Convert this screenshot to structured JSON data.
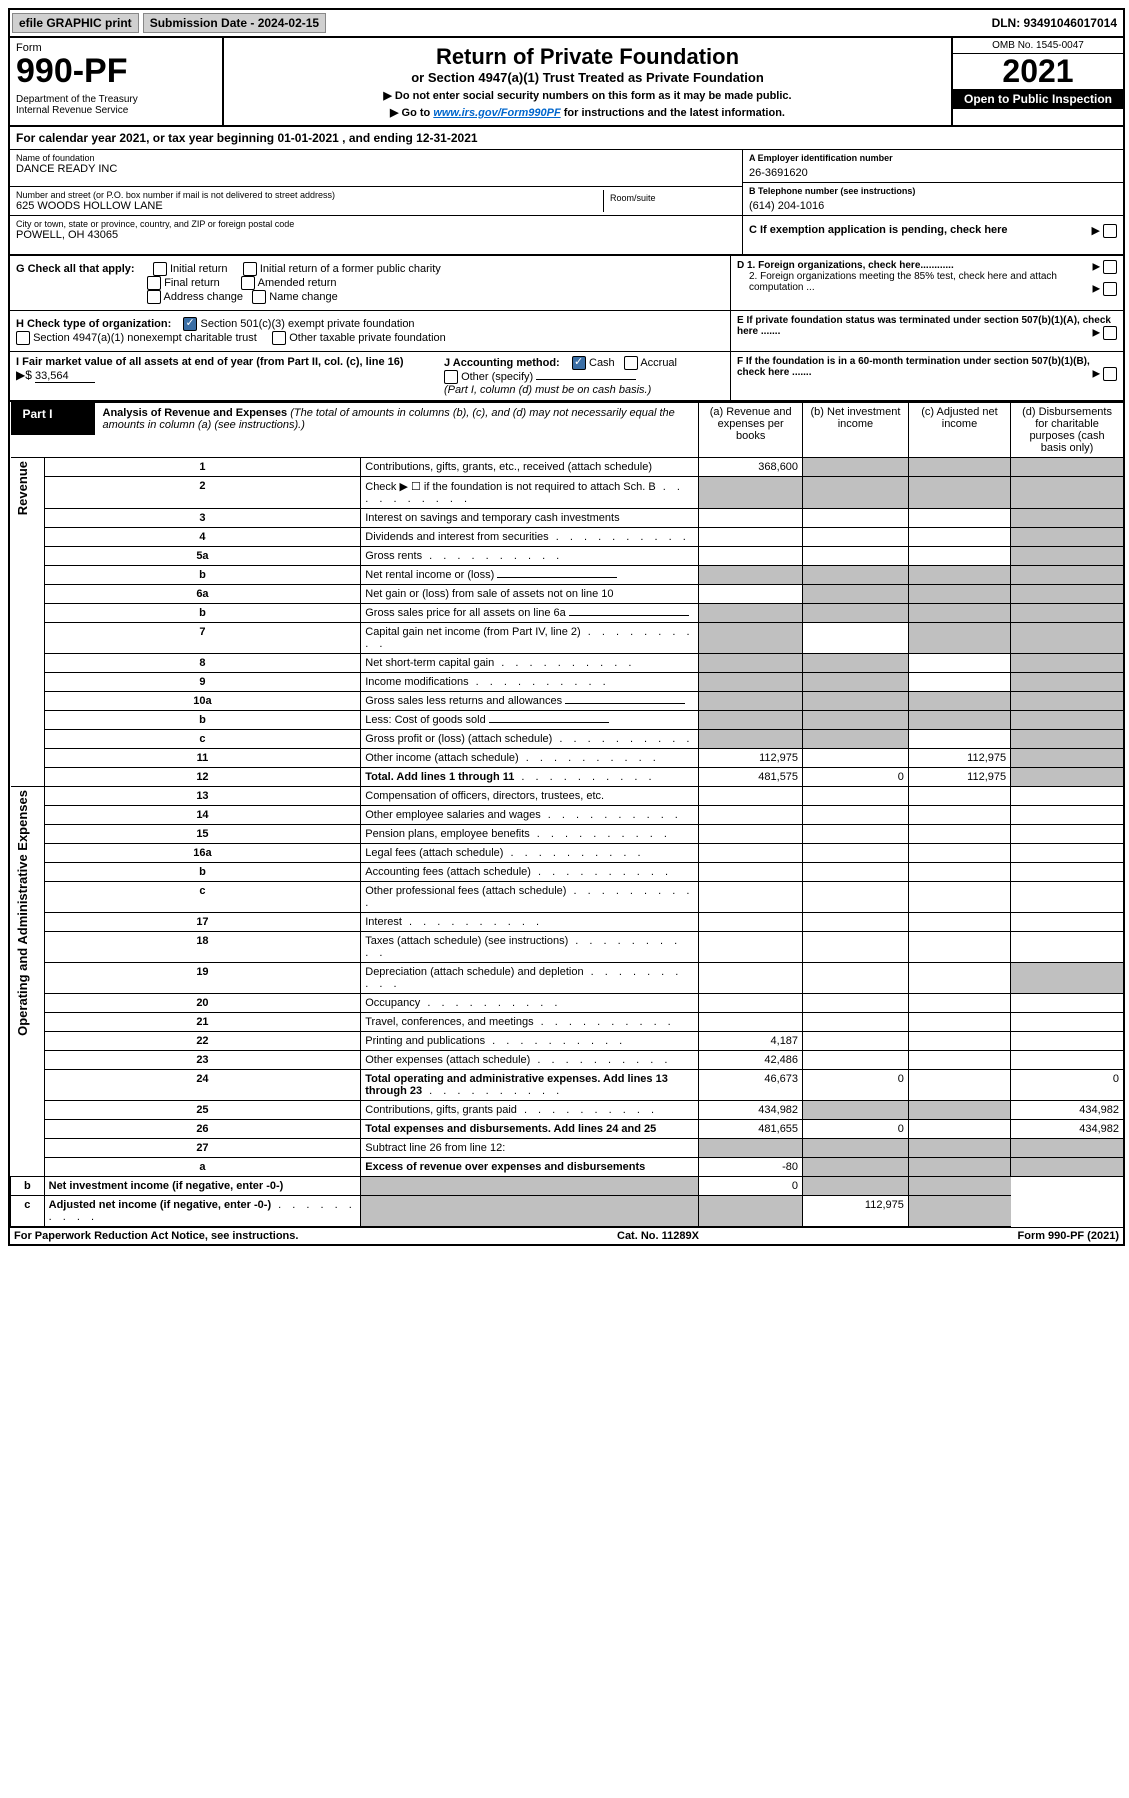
{
  "topbar": {
    "efile": "efile GRAPHIC print",
    "subdate_label": "Submission Date - 2024-02-15",
    "dln": "DLN: 93491046017014"
  },
  "header": {
    "form_label": "Form",
    "form_no": "990-PF",
    "dept": "Department of the Treasury\nInternal Revenue Service",
    "title": "Return of Private Foundation",
    "subtitle": "or Section 4947(a)(1) Trust Treated as Private Foundation",
    "note1": "▶ Do not enter social security numbers on this form as it may be made public.",
    "note2_pre": "▶ Go to ",
    "note2_link": "www.irs.gov/Form990PF",
    "note2_post": " for instructions and the latest information.",
    "omb": "OMB No. 1545-0047",
    "year": "2021",
    "open": "Open to Public Inspection"
  },
  "calyear": "For calendar year 2021, or tax year beginning 01-01-2021                              , and ending 12-31-2021",
  "entity": {
    "name_label": "Name of foundation",
    "name": "DANCE READY INC",
    "addr_label": "Number and street (or P.O. box number if mail is not delivered to street address)",
    "addr": "625 WOODS HOLLOW LANE",
    "room_label": "Room/suite",
    "city_label": "City or town, state or province, country, and ZIP or foreign postal code",
    "city": "POWELL, OH  43065",
    "ein_label": "A Employer identification number",
    "ein": "26-3691620",
    "phone_label": "B Telephone number (see instructions)",
    "phone": "(614) 204-1016",
    "c_label": "C If exemption application is pending, check here"
  },
  "g": {
    "label": "G Check all that apply:",
    "opts": [
      "Initial return",
      "Initial return of a former public charity",
      "Final return",
      "Amended return",
      "Address change",
      "Name change"
    ]
  },
  "d": {
    "d1": "D 1. Foreign organizations, check here............",
    "d2": "2. Foreign organizations meeting the 85% test, check here and attach computation ...",
    "e": "E  If private foundation status was terminated under section 507(b)(1)(A), check here .......",
    "f": "F  If the foundation is in a 60-month termination under section 507(b)(1)(B), check here ......."
  },
  "h": {
    "label": "H Check type of organization:",
    "opt1": "Section 501(c)(3) exempt private foundation",
    "opt2": "Section 4947(a)(1) nonexempt charitable trust",
    "opt3": "Other taxable private foundation"
  },
  "i": {
    "label": "I Fair market value of all assets at end of year (from Part II, col. (c), line 16)",
    "arrow": "▶$",
    "value": "33,564"
  },
  "j": {
    "label": "J Accounting method:",
    "cash": "Cash",
    "accrual": "Accrual",
    "other": "Other (specify)",
    "note": "(Part I, column (d) must be on cash basis.)"
  },
  "part1": {
    "label": "Part I",
    "title": "Analysis of Revenue and Expenses",
    "subtitle": "(The total of amounts in columns (b), (c), and (d) may not necessarily equal the amounts in column (a) (see instructions).)",
    "cols": {
      "a": "(a)   Revenue and expenses per books",
      "b": "(b)   Net investment income",
      "c": "(c)   Adjusted net income",
      "d": "(d)   Disbursements for charitable purposes (cash basis only)"
    }
  },
  "sections": {
    "revenue": "Revenue",
    "expenses": "Operating and Administrative Expenses"
  },
  "rows": [
    {
      "n": "1",
      "d": "Contributions, gifts, grants, etc., received (attach schedule)",
      "a": "368,600",
      "b": "g",
      "c": "g",
      "dd": "g"
    },
    {
      "n": "2",
      "d": "Check ▶ ☐ if the foundation is not required to attach Sch. B",
      "dots": true,
      "a": "g",
      "b": "g",
      "c": "g",
      "dd": "g"
    },
    {
      "n": "3",
      "d": "Interest on savings and temporary cash investments",
      "a": "",
      "b": "",
      "c": "",
      "dd": "g"
    },
    {
      "n": "4",
      "d": "Dividends and interest from securities",
      "dots": true,
      "a": "",
      "b": "",
      "c": "",
      "dd": "g"
    },
    {
      "n": "5a",
      "d": "Gross rents",
      "dots": true,
      "a": "",
      "b": "",
      "c": "",
      "dd": "g"
    },
    {
      "n": "b",
      "d": "Net rental income or (loss)",
      "inline": true,
      "a": "g",
      "b": "g",
      "c": "g",
      "dd": "g"
    },
    {
      "n": "6a",
      "d": "Net gain or (loss) from sale of assets not on line 10",
      "a": "",
      "b": "g",
      "c": "g",
      "dd": "g"
    },
    {
      "n": "b",
      "d": "Gross sales price for all assets on line 6a",
      "inline": true,
      "a": "g",
      "b": "g",
      "c": "g",
      "dd": "g"
    },
    {
      "n": "7",
      "d": "Capital gain net income (from Part IV, line 2)",
      "dots": true,
      "a": "g",
      "b": "",
      "c": "g",
      "dd": "g"
    },
    {
      "n": "8",
      "d": "Net short-term capital gain",
      "dots": true,
      "a": "g",
      "b": "g",
      "c": "",
      "dd": "g"
    },
    {
      "n": "9",
      "d": "Income modifications",
      "dots": true,
      "a": "g",
      "b": "g",
      "c": "",
      "dd": "g"
    },
    {
      "n": "10a",
      "d": "Gross sales less returns and allowances",
      "inline": true,
      "a": "g",
      "b": "g",
      "c": "g",
      "dd": "g"
    },
    {
      "n": "b",
      "d": "Less: Cost of goods sold",
      "dots": true,
      "inline": true,
      "a": "g",
      "b": "g",
      "c": "g",
      "dd": "g"
    },
    {
      "n": "c",
      "d": "Gross profit or (loss) (attach schedule)",
      "dots": true,
      "a": "g",
      "b": "g",
      "c": "",
      "dd": "g"
    },
    {
      "n": "11",
      "d": "Other income (attach schedule)",
      "dots": true,
      "a": "112,975",
      "b": "",
      "c": "112,975",
      "dd": "g"
    },
    {
      "n": "12",
      "d": "Total. Add lines 1 through 11",
      "dots": true,
      "bold": true,
      "a": "481,575",
      "b": "0",
      "c": "112,975",
      "dd": "g"
    },
    {
      "n": "13",
      "d": "Compensation of officers, directors, trustees, etc.",
      "a": "",
      "b": "",
      "c": "",
      "dd": ""
    },
    {
      "n": "14",
      "d": "Other employee salaries and wages",
      "dots": true,
      "a": "",
      "b": "",
      "c": "",
      "dd": ""
    },
    {
      "n": "15",
      "d": "Pension plans, employee benefits",
      "dots": true,
      "a": "",
      "b": "",
      "c": "",
      "dd": ""
    },
    {
      "n": "16a",
      "d": "Legal fees (attach schedule)",
      "dots": true,
      "a": "",
      "b": "",
      "c": "",
      "dd": ""
    },
    {
      "n": "b",
      "d": "Accounting fees (attach schedule)",
      "dots": true,
      "a": "",
      "b": "",
      "c": "",
      "dd": ""
    },
    {
      "n": "c",
      "d": "Other professional fees (attach schedule)",
      "dots": true,
      "a": "",
      "b": "",
      "c": "",
      "dd": ""
    },
    {
      "n": "17",
      "d": "Interest",
      "dots": true,
      "a": "",
      "b": "",
      "c": "",
      "dd": ""
    },
    {
      "n": "18",
      "d": "Taxes (attach schedule) (see instructions)",
      "dots": true,
      "a": "",
      "b": "",
      "c": "",
      "dd": ""
    },
    {
      "n": "19",
      "d": "Depreciation (attach schedule) and depletion",
      "dots": true,
      "a": "",
      "b": "",
      "c": "",
      "dd": "g"
    },
    {
      "n": "20",
      "d": "Occupancy",
      "dots": true,
      "a": "",
      "b": "",
      "c": "",
      "dd": ""
    },
    {
      "n": "21",
      "d": "Travel, conferences, and meetings",
      "dots": true,
      "a": "",
      "b": "",
      "c": "",
      "dd": ""
    },
    {
      "n": "22",
      "d": "Printing and publications",
      "dots": true,
      "a": "4,187",
      "b": "",
      "c": "",
      "dd": ""
    },
    {
      "n": "23",
      "d": "Other expenses (attach schedule)",
      "dots": true,
      "a": "42,486",
      "b": "",
      "c": "",
      "dd": ""
    },
    {
      "n": "24",
      "d": "Total operating and administrative expenses. Add lines 13 through 23",
      "dots": true,
      "bold": true,
      "a": "46,673",
      "b": "0",
      "c": "",
      "dd": "0"
    },
    {
      "n": "25",
      "d": "Contributions, gifts, grants paid",
      "dots": true,
      "a": "434,982",
      "b": "g",
      "c": "g",
      "dd": "434,982"
    },
    {
      "n": "26",
      "d": "Total expenses and disbursements. Add lines 24 and 25",
      "bold": true,
      "a": "481,655",
      "b": "0",
      "c": "",
      "dd": "434,982"
    },
    {
      "n": "27",
      "d": "Subtract line 26 from line 12:",
      "a": "g",
      "b": "g",
      "c": "g",
      "dd": "g"
    },
    {
      "n": "a",
      "d": "Excess of revenue over expenses and disbursements",
      "bold": true,
      "a": "-80",
      "b": "g",
      "c": "g",
      "dd": "g"
    },
    {
      "n": "b",
      "d": "Net investment income (if negative, enter -0-)",
      "bold": true,
      "a": "g",
      "b": "0",
      "c": "g",
      "dd": "g"
    },
    {
      "n": "c",
      "d": "Adjusted net income (if negative, enter -0-)",
      "dots": true,
      "bold": true,
      "a": "g",
      "b": "g",
      "c": "112,975",
      "dd": "g"
    }
  ],
  "footer": {
    "left": "For Paperwork Reduction Act Notice, see instructions.",
    "mid": "Cat. No. 11289X",
    "right": "Form 990-PF (2021)"
  }
}
